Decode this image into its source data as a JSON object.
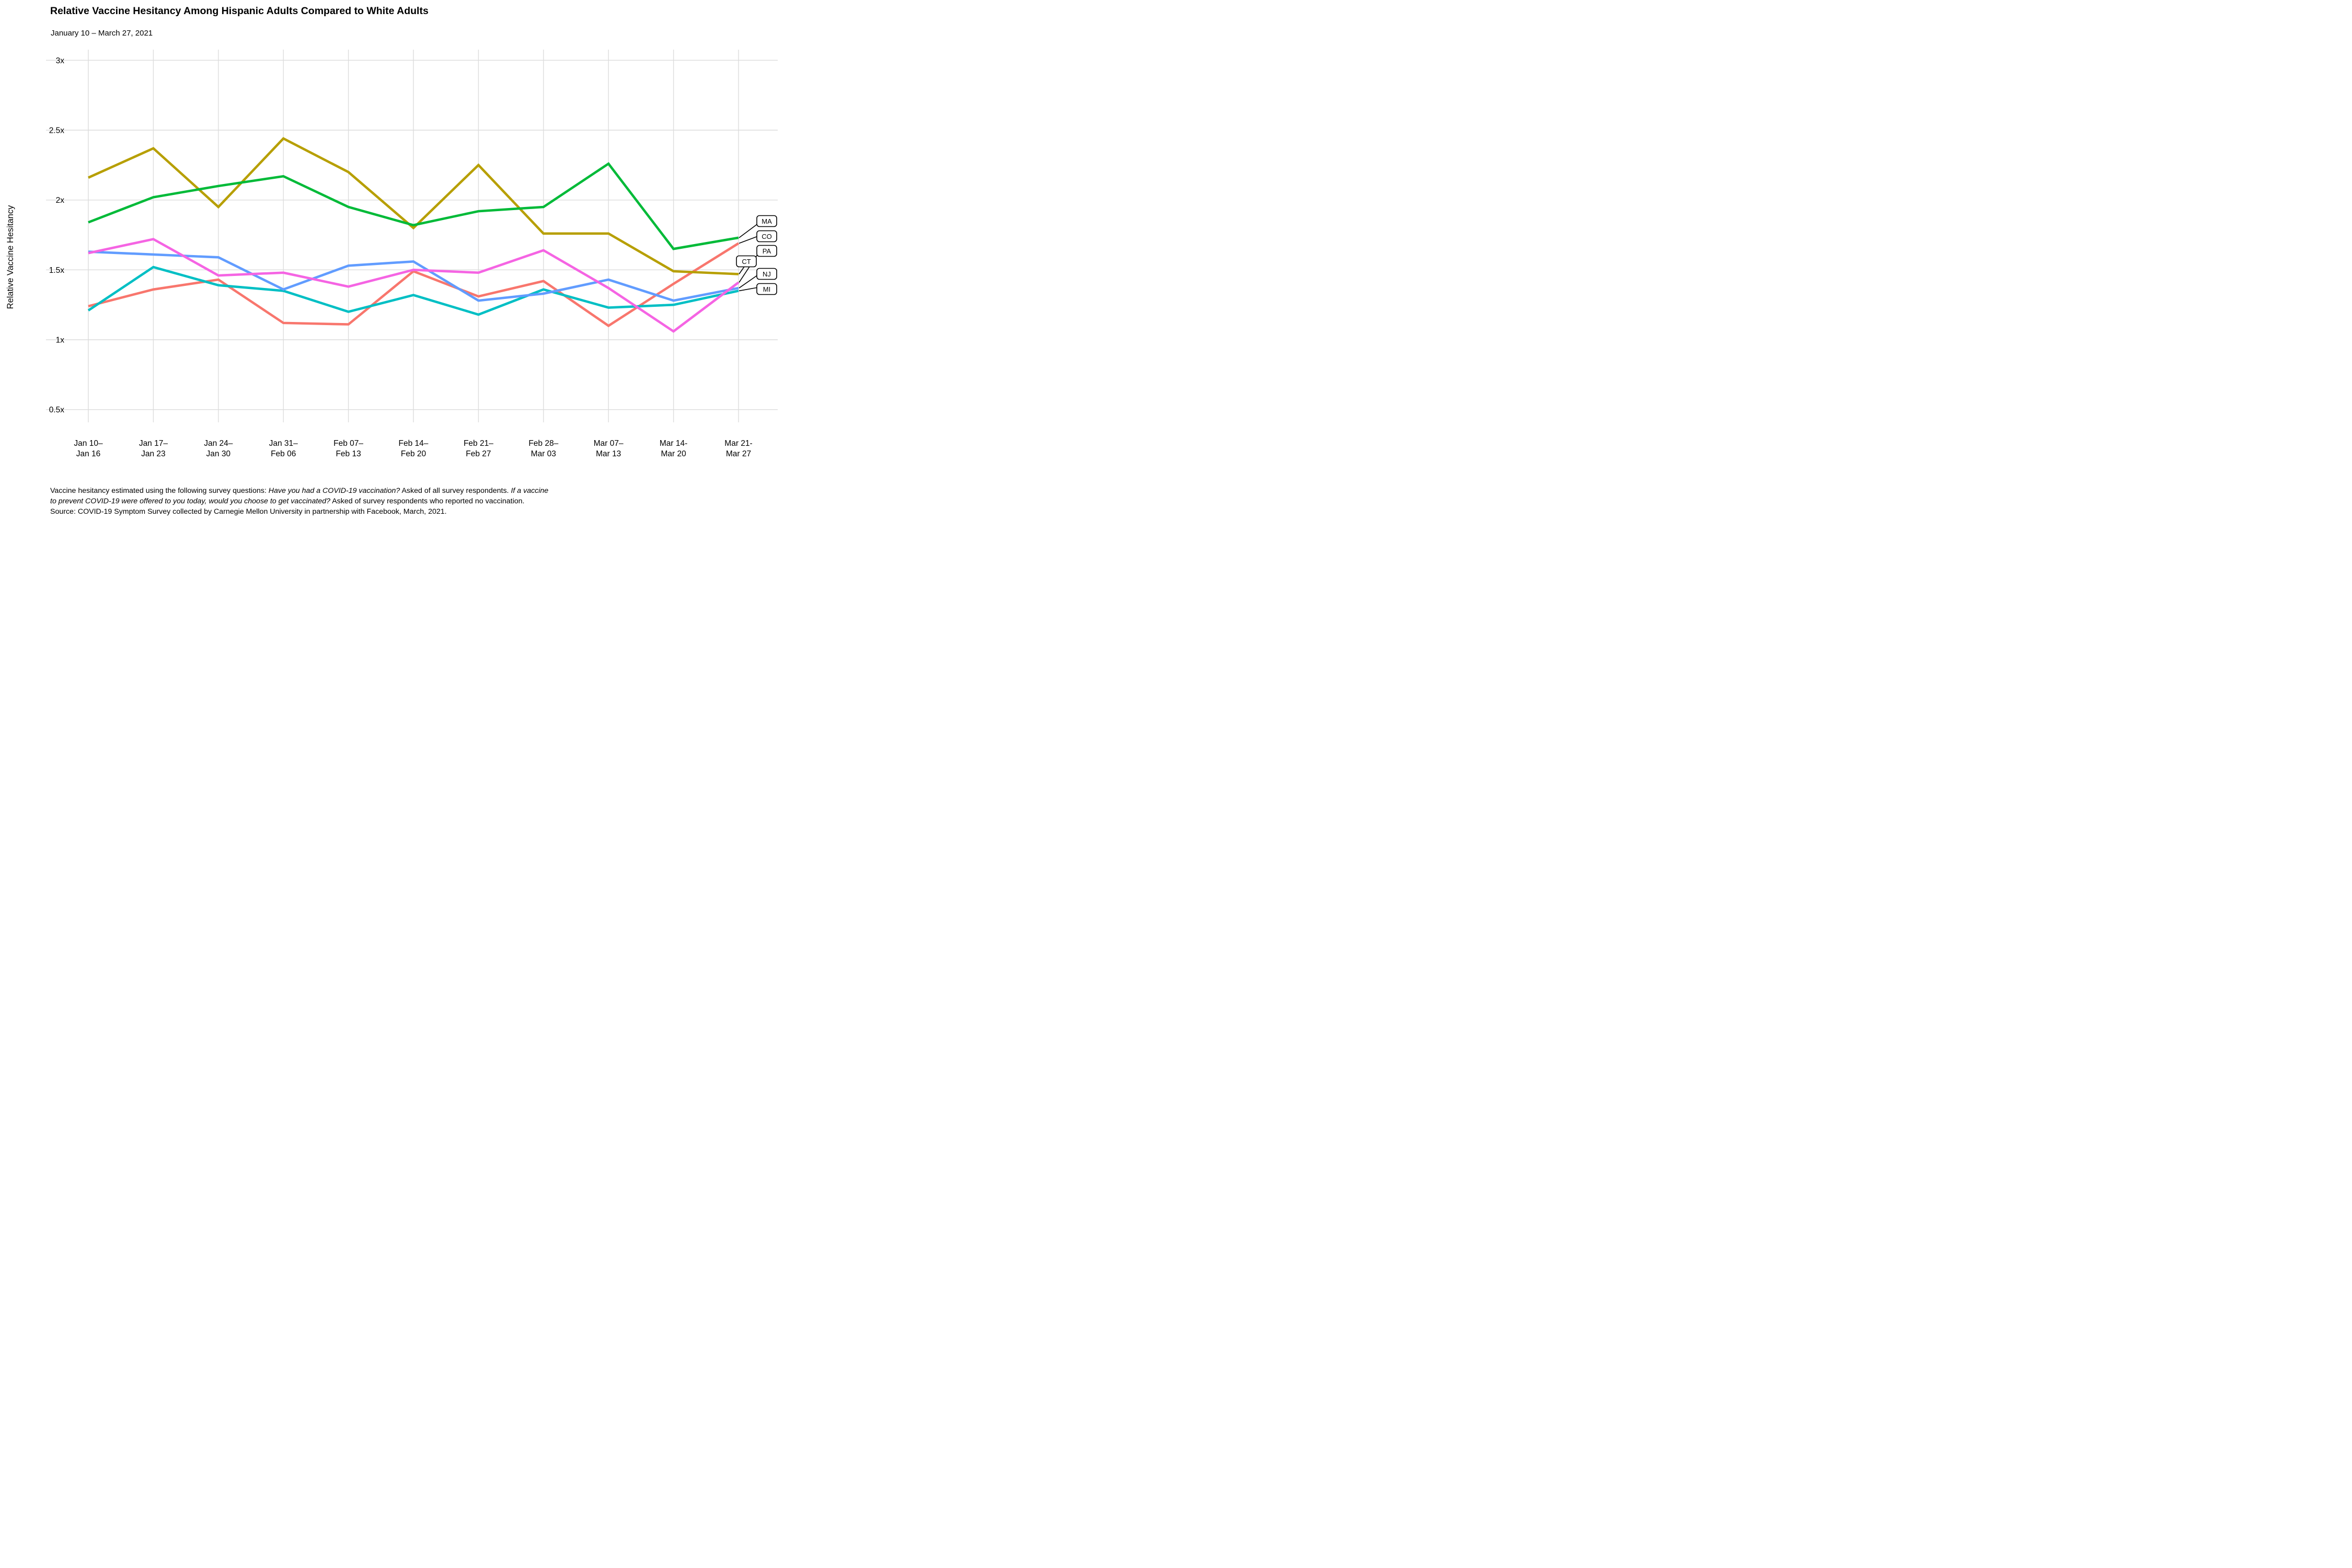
{
  "chart_data": {
    "type": "line",
    "title": "Relative Vaccine Hesitancy Among Hispanic Adults Compared to White Adults",
    "subtitle": "January 10 – March 27, 2021",
    "ylabel": "Relative Vaccine Hesitancy",
    "xlabel": "",
    "x_categories": [
      [
        "Jan 10–",
        "Jan 16"
      ],
      [
        "Jan 17–",
        "Jan 23"
      ],
      [
        "Jan 24–",
        "Jan 30"
      ],
      [
        "Jan 31–",
        "Feb 06"
      ],
      [
        "Feb 07–",
        "Feb 13"
      ],
      [
        "Feb 14–",
        "Feb 20"
      ],
      [
        "Feb 21–",
        "Feb 27"
      ],
      [
        "Feb 28–",
        "Mar 03"
      ],
      [
        "Mar 07–",
        "Mar 13"
      ],
      [
        "Mar 14-",
        "Mar 20"
      ],
      [
        "Mar 21-",
        "Mar 27"
      ]
    ],
    "y_ticks": {
      "values": [
        3,
        2.5,
        2,
        1.5,
        1,
        0.5
      ],
      "labels": [
        "3x",
        "2.5x",
        "2x",
        "1.5x",
        "1x",
        "0.5x"
      ]
    },
    "ylim": [
      0.41,
      3.08
    ],
    "grid": true,
    "legend_position": "boxed state labels at right ends of lines",
    "series": [
      {
        "name": "CO",
        "color": "#F8766D",
        "values": [
          1.24,
          1.36,
          1.43,
          1.12,
          1.11,
          1.49,
          1.31,
          1.42,
          1.1,
          1.4,
          1.69
        ]
      },
      {
        "name": "CT",
        "color": "#B79F00",
        "values": [
          2.16,
          2.37,
          1.95,
          2.44,
          2.2,
          1.8,
          2.25,
          1.76,
          1.76,
          1.49,
          1.47
        ]
      },
      {
        "name": "MA",
        "color": "#00BA38",
        "values": [
          1.84,
          2.02,
          2.1,
          2.17,
          1.95,
          1.82,
          1.92,
          1.95,
          2.26,
          1.65,
          1.73
        ]
      },
      {
        "name": "MI",
        "color": "#00BFC4",
        "values": [
          1.21,
          1.52,
          1.39,
          1.35,
          1.2,
          1.32,
          1.18,
          1.36,
          1.23,
          1.25,
          1.35
        ]
      },
      {
        "name": "NJ",
        "color": "#619CFF",
        "values": [
          1.63,
          1.61,
          1.59,
          1.36,
          1.53,
          1.56,
          1.28,
          1.33,
          1.43,
          1.28,
          1.37
        ]
      },
      {
        "name": "PA",
        "color": "#F564E3",
        "values": [
          1.62,
          1.72,
          1.46,
          1.48,
          1.38,
          1.5,
          1.48,
          1.64,
          1.37,
          1.06,
          1.41
        ]
      }
    ],
    "series_label_order": [
      "MA",
      "CO",
      "PA",
      "CT",
      "NJ",
      "MI"
    ]
  },
  "footnote": {
    "lines": [
      [
        {
          "text": "Vaccine hesitancy estimated using the following survey questions: ",
          "italic": false
        },
        {
          "text": "Have you had a COVID-19 vaccination?",
          "italic": true
        },
        {
          "text": " Asked of all survey respondents. ",
          "italic": false
        },
        {
          "text": "If a vaccine",
          "italic": true
        }
      ],
      [
        {
          "text": "to prevent COVID-19 were offered to you today, would you choose to get vaccinated?",
          "italic": true
        },
        {
          "text": " Asked of survey respondents who reported no vaccination.",
          "italic": false
        }
      ],
      [
        {
          "text": "Source: COVID-19 Symptom Survey collected by Carnegie Mellon University in partnership with Facebook, March, 2021.",
          "italic": false
        }
      ]
    ]
  }
}
